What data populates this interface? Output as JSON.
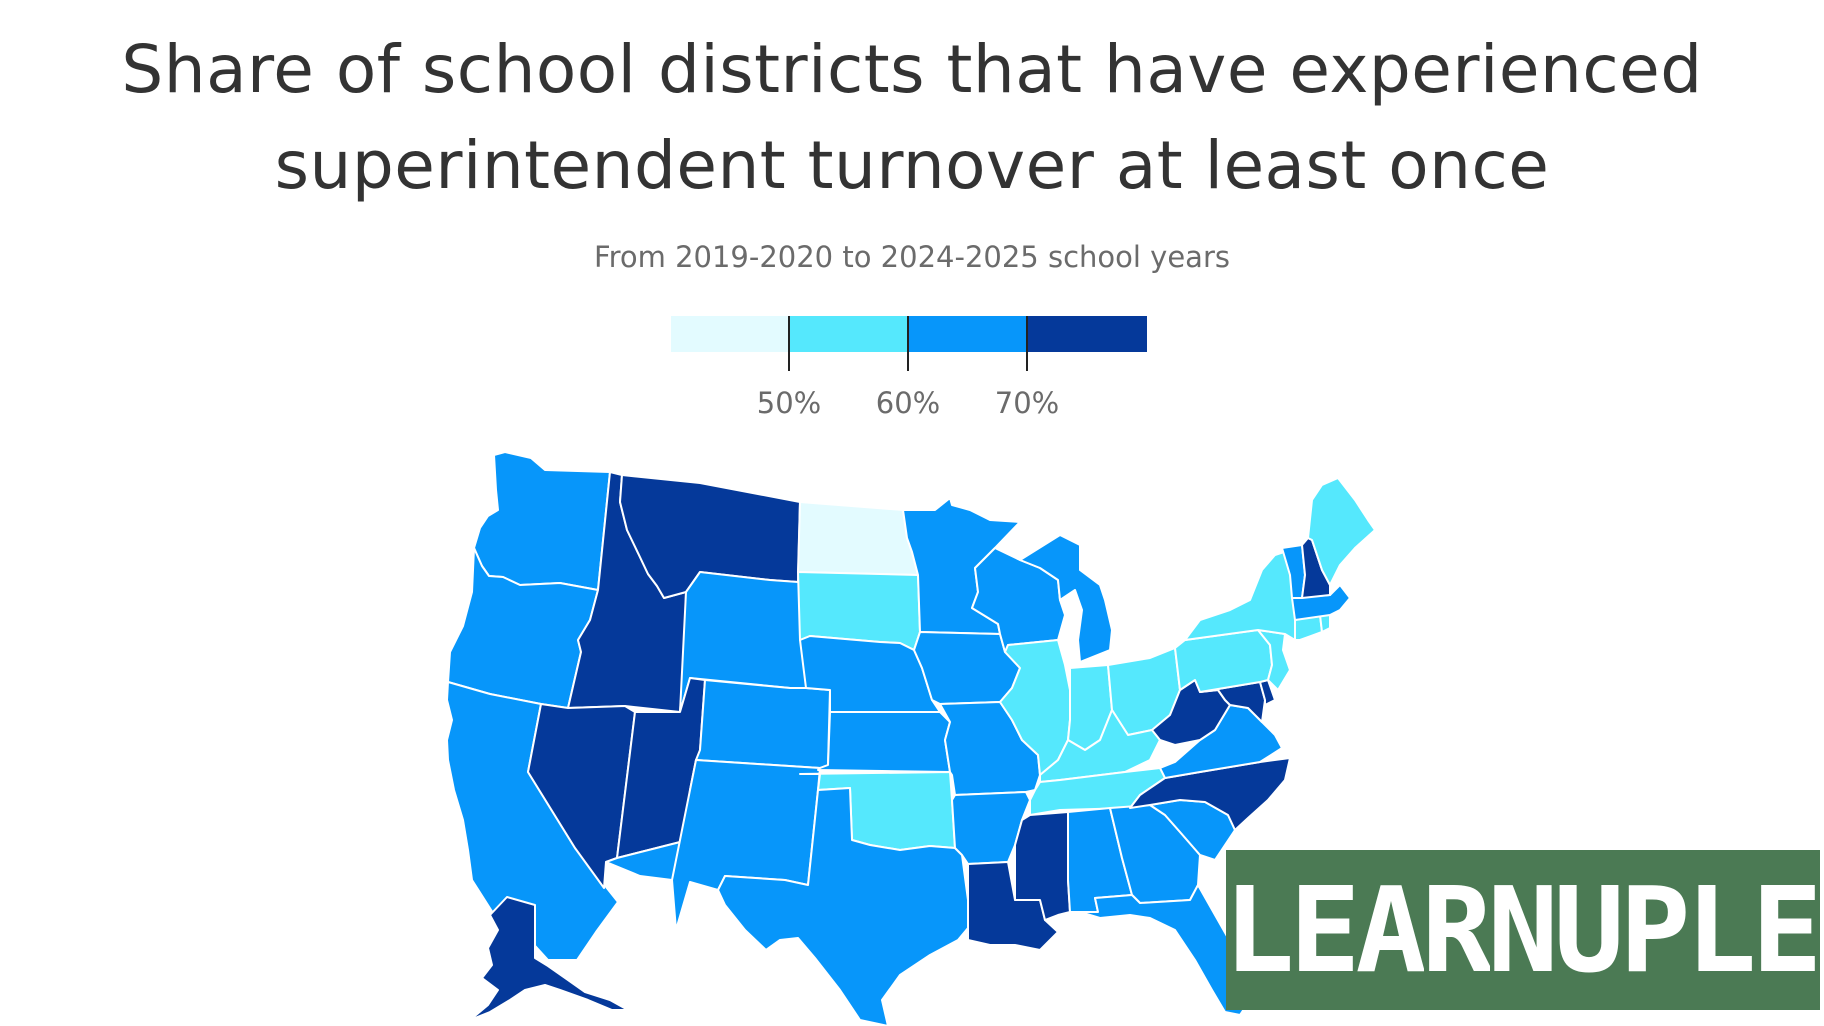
{
  "title": {
    "line1": "Share of school districts that have experienced",
    "line2": "superintendent turnover at least once"
  },
  "subtitle": "From 2019-2020 to 2024-2025 school years",
  "legend": {
    "colors": [
      "#e3fbff",
      "#55e8fd",
      "#0796fa",
      "#05399a"
    ],
    "ticks": [
      "50%",
      "60%",
      "70%"
    ]
  },
  "map": {
    "bins": {
      "below_50": "#e3fbff",
      "50_to_60": "#55e8fd",
      "60_to_70": "#0796fa",
      "70_plus": "#05399a"
    },
    "states": [
      {
        "id": "WA",
        "bin": "60_to_70"
      },
      {
        "id": "OR",
        "bin": "60_to_70"
      },
      {
        "id": "CA",
        "bin": "60_to_70"
      },
      {
        "id": "ID",
        "bin": "70_plus"
      },
      {
        "id": "NV",
        "bin": "70_plus"
      },
      {
        "id": "MT",
        "bin": "70_plus"
      },
      {
        "id": "WY",
        "bin": "60_to_70"
      },
      {
        "id": "UT",
        "bin": "70_plus"
      },
      {
        "id": "AZ",
        "bin": "60_to_70"
      },
      {
        "id": "CO",
        "bin": "60_to_70"
      },
      {
        "id": "NM",
        "bin": "60_to_70"
      },
      {
        "id": "ND",
        "bin": "below_50"
      },
      {
        "id": "SD",
        "bin": "50_to_60"
      },
      {
        "id": "NE",
        "bin": "60_to_70"
      },
      {
        "id": "KS",
        "bin": "60_to_70"
      },
      {
        "id": "OK",
        "bin": "50_to_60"
      },
      {
        "id": "TX",
        "bin": "60_to_70"
      },
      {
        "id": "MN",
        "bin": "60_to_70"
      },
      {
        "id": "IA",
        "bin": "60_to_70"
      },
      {
        "id": "MO",
        "bin": "60_to_70"
      },
      {
        "id": "AR",
        "bin": "60_to_70"
      },
      {
        "id": "LA",
        "bin": "70_plus"
      },
      {
        "id": "WI",
        "bin": "60_to_70"
      },
      {
        "id": "IL",
        "bin": "50_to_60"
      },
      {
        "id": "MI",
        "bin": "60_to_70"
      },
      {
        "id": "IN",
        "bin": "50_to_60"
      },
      {
        "id": "OH",
        "bin": "50_to_60"
      },
      {
        "id": "KY",
        "bin": "50_to_60"
      },
      {
        "id": "TN",
        "bin": "50_to_60"
      },
      {
        "id": "MS",
        "bin": "70_plus"
      },
      {
        "id": "AL",
        "bin": "60_to_70"
      },
      {
        "id": "GA",
        "bin": "60_to_70"
      },
      {
        "id": "FL",
        "bin": "60_to_70"
      },
      {
        "id": "SC",
        "bin": "60_to_70"
      },
      {
        "id": "NC",
        "bin": "70_plus"
      },
      {
        "id": "VA",
        "bin": "60_to_70"
      },
      {
        "id": "WV",
        "bin": "70_plus"
      },
      {
        "id": "MD",
        "bin": "70_plus"
      },
      {
        "id": "DE",
        "bin": "70_plus"
      },
      {
        "id": "PA",
        "bin": "50_to_60"
      },
      {
        "id": "NJ",
        "bin": "50_to_60"
      },
      {
        "id": "NY",
        "bin": "50_to_60"
      },
      {
        "id": "CT",
        "bin": "50_to_60"
      },
      {
        "id": "RI",
        "bin": "50_to_60"
      },
      {
        "id": "MA",
        "bin": "60_to_70"
      },
      {
        "id": "VT",
        "bin": "60_to_70"
      },
      {
        "id": "NH",
        "bin": "70_plus"
      },
      {
        "id": "ME",
        "bin": "50_to_60"
      },
      {
        "id": "AK",
        "bin": "70_plus"
      }
    ]
  },
  "watermark": {
    "text": "LEARNUPLE",
    "tile_color": "#4b7a54"
  }
}
